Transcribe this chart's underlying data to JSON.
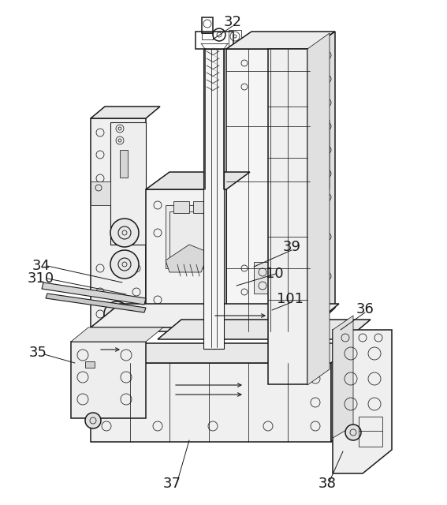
{
  "figure_width": 5.67,
  "figure_height": 6.4,
  "dpi": 100,
  "bg_color": "#ffffff",
  "line_color": "#1a1a1a",
  "light_gray": "#c8c8c8",
  "mid_gray": "#a0a0a0",
  "label_fontsize": 13,
  "labels": [
    [
      "32",
      295,
      28
    ],
    [
      "34",
      52,
      337
    ],
    [
      "310",
      52,
      353
    ],
    [
      "39",
      370,
      313
    ],
    [
      "10",
      348,
      347
    ],
    [
      "101",
      368,
      379
    ],
    [
      "36",
      463,
      392
    ],
    [
      "35",
      48,
      447
    ],
    [
      "37",
      218,
      613
    ],
    [
      "38",
      415,
      613
    ]
  ],
  "leader_lines": [
    [
      295,
      33,
      270,
      50
    ],
    [
      60,
      337,
      155,
      358
    ],
    [
      60,
      353,
      160,
      373
    ],
    [
      370,
      317,
      322,
      338
    ],
    [
      350,
      347,
      300,
      362
    ],
    [
      370,
      383,
      345,
      393
    ],
    [
      463,
      396,
      432,
      418
    ],
    [
      56,
      449,
      95,
      460
    ],
    [
      225,
      610,
      240,
      558
    ],
    [
      418,
      610,
      435,
      572
    ]
  ]
}
